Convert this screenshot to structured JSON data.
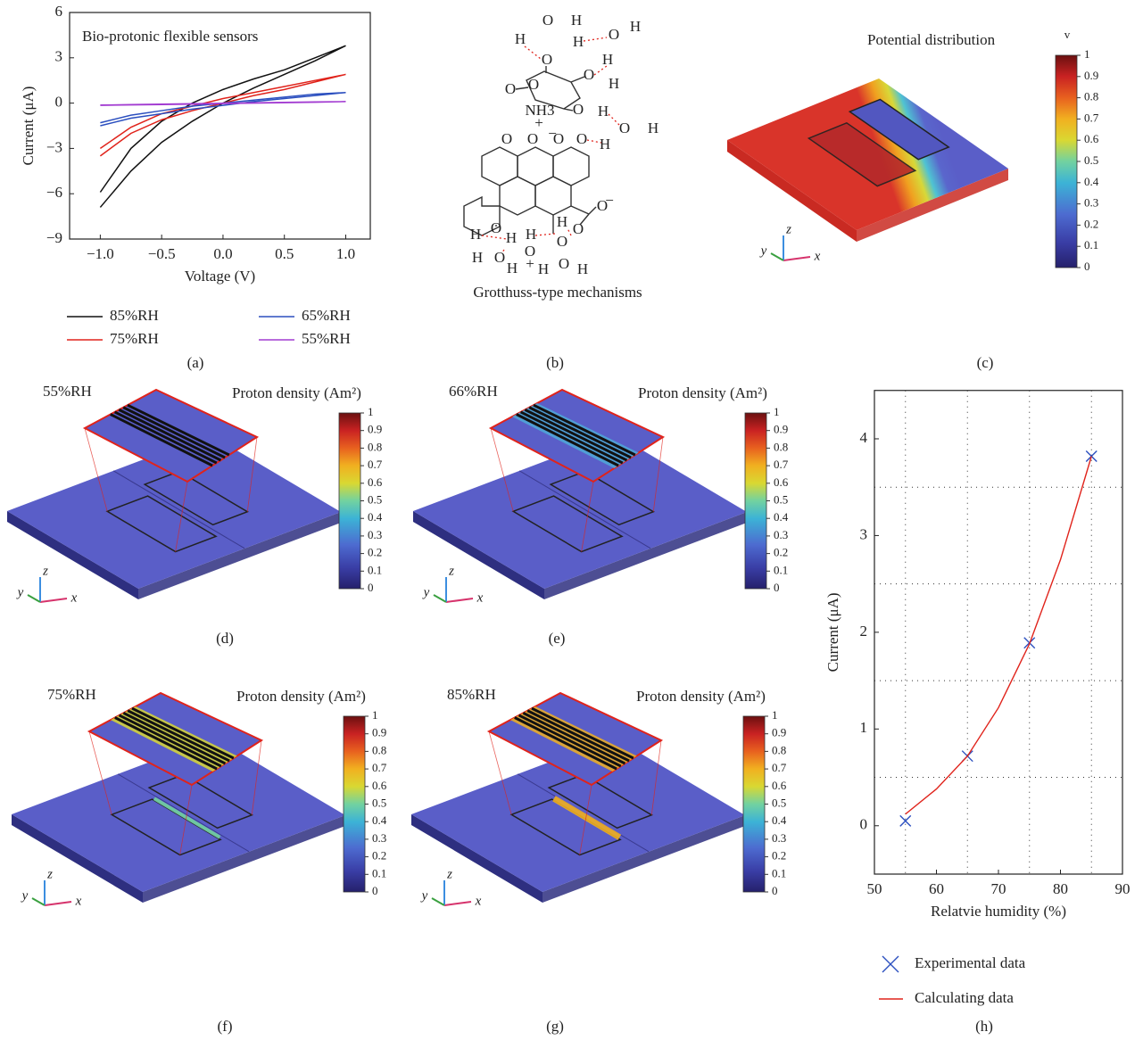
{
  "chart_data": [
    {
      "type": "line",
      "annotation": "Bio-protonic flexible sensors",
      "xlabel": "Voltage (V)",
      "ylabel": "Current (μA)",
      "xlim": [
        -1.25,
        1.2
      ],
      "ylim": [
        -9,
        6
      ],
      "xticks": [
        {
          "value": -1,
          "label": "−1.0"
        },
        {
          "value": -0.5,
          "label": "−0.5"
        },
        {
          "value": 0,
          "label": "0.0"
        },
        {
          "value": 0.5,
          "label": "0.5"
        },
        {
          "value": 1,
          "label": "1.0"
        }
      ],
      "yticks": [
        {
          "value": -9,
          "label": "−9"
        },
        {
          "value": -6,
          "label": "−6"
        },
        {
          "value": -3,
          "label": "−3"
        },
        0,
        3,
        6
      ],
      "x": [
        -1,
        -0.75,
        -0.5,
        -0.25,
        0,
        0.25,
        0.5,
        0.75,
        1,
        0.75,
        0.5,
        0.25,
        0,
        -0.25,
        -0.5,
        -0.75,
        -1
      ],
      "series": [
        {
          "name": "85%RH",
          "color": "#111111",
          "values": [
            -6.9,
            -4.5,
            -2.6,
            -1.2,
            0.0,
            1.0,
            1.9,
            2.8,
            3.8,
            3.0,
            2.2,
            1.6,
            0.9,
            0.0,
            -1.2,
            -3.0,
            -5.9
          ]
        },
        {
          "name": "75%RH",
          "color": "#e0231b",
          "values": [
            -3.5,
            -2.0,
            -1.1,
            -0.5,
            0.0,
            0.5,
            0.9,
            1.4,
            1.9,
            1.5,
            1.1,
            0.7,
            0.3,
            -0.2,
            -0.7,
            -1.6,
            -3.0
          ]
        },
        {
          "name": "65%RH",
          "color": "#2b4fbf",
          "values": [
            -1.5,
            -1.0,
            -0.7,
            -0.4,
            -0.15,
            0.1,
            0.3,
            0.5,
            0.7,
            0.6,
            0.4,
            0.2,
            0.0,
            -0.2,
            -0.5,
            -0.8,
            -1.3
          ]
        },
        {
          "name": "55%RH",
          "color": "#a23bd1",
          "values": [
            -0.15,
            -0.12,
            -0.1,
            -0.07,
            -0.03,
            0.0,
            0.03,
            0.06,
            0.1,
            0.08,
            0.05,
            0.02,
            -0.01,
            -0.04,
            -0.07,
            -0.1,
            -0.13
          ]
        }
      ]
    },
    {
      "type": "scatter",
      "xlabel": "Relatvie humidity (%)",
      "ylabel": "Current (μA)",
      "xlim": [
        50,
        90
      ],
      "ylim": [
        -0.5,
        4.5
      ],
      "xticks": [
        50,
        60,
        70,
        80,
        90
      ],
      "yticks": [
        0,
        1,
        2,
        3,
        4
      ],
      "grid_x": [
        55,
        65,
        75,
        85
      ],
      "grid_y": [
        0.5,
        1.5,
        2.5,
        3.5
      ],
      "series": [
        {
          "name": "Experimental data",
          "color": "#2b4fbf",
          "marker": "x",
          "x": [
            55,
            65,
            75,
            85
          ],
          "values": [
            0.05,
            0.72,
            1.89,
            3.82
          ]
        },
        {
          "name": "Calculating data",
          "color": "#e0231b",
          "marker": "line",
          "x": [
            55,
            60,
            65,
            70,
            75,
            80,
            85
          ],
          "values": [
            0.12,
            0.38,
            0.72,
            1.22,
            1.88,
            2.75,
            3.82
          ]
        }
      ]
    }
  ],
  "panel_labels": [
    "(a)",
    "(b)",
    "(c)",
    "(d)",
    "(e)",
    "(f)",
    "(g)",
    "(h)"
  ],
  "molecule": {
    "caption": "Grotthuss-type mechanisms",
    "atoms": [
      {
        "label": "H",
        "color": "#e0231b"
      },
      {
        "label": "O",
        "color": "#e0231b"
      },
      {
        "label": "H",
        "color": "#e0231b"
      },
      {
        "label": "O",
        "color": "#e0231b"
      },
      {
        "label": "H",
        "color": "#e0231b"
      },
      {
        "label": "H",
        "color": "#e0231b"
      },
      {
        "label": "H",
        "color": "#222222"
      },
      {
        "label": "O",
        "color": "#222222"
      },
      {
        "label": "O",
        "color": "#222222"
      },
      {
        "label": "H",
        "color": "#222222"
      },
      {
        "label": "O",
        "color": "#222222"
      },
      {
        "label": "O",
        "color": "#222222"
      },
      {
        "label": "NH3",
        "color": "#222222"
      },
      {
        "label": "+",
        "color": "#222222"
      },
      {
        "label": "O",
        "color": "#222222"
      },
      {
        "label": "H",
        "color": "#222222"
      },
      {
        "label": "O",
        "color": "#e0231b"
      },
      {
        "label": "H",
        "color": "#e0231b"
      },
      {
        "label": "H",
        "color": "#e0231b"
      },
      {
        "label": "O",
        "color": "#222222"
      },
      {
        "label": "O",
        "color": "#222222"
      },
      {
        "label": "O",
        "color": "#222222"
      },
      {
        "label": "−",
        "color": "#222222"
      },
      {
        "label": "O",
        "color": "#222222"
      },
      {
        "label": "O",
        "color": "#222222"
      },
      {
        "label": "−",
        "color": "#222222"
      },
      {
        "label": "O",
        "color": "#222222"
      },
      {
        "label": "H",
        "color": "#222222"
      },
      {
        "label": "O",
        "color": "#222222"
      },
      {
        "label": "H",
        "color": "#e0231b"
      },
      {
        "label": "H",
        "color": "#e0231b"
      },
      {
        "label": "O",
        "color": "#e0231b"
      },
      {
        "label": "H",
        "color": "#e0231b"
      },
      {
        "label": "H",
        "color": "#e0231b"
      },
      {
        "label": "O",
        "color": "#e0231b"
      },
      {
        "label": "H",
        "color": "#e0231b"
      },
      {
        "label": "O",
        "color": "#e0231b"
      },
      {
        "label": "+",
        "color": "#e0231b"
      },
      {
        "label": "H",
        "color": "#e0231b"
      },
      {
        "label": "O",
        "color": "#e0231b"
      },
      {
        "label": "H",
        "color": "#e0231b"
      }
    ]
  },
  "potential_map": {
    "title": "Potential distribution",
    "axes": [
      "y",
      "z",
      "x"
    ],
    "colorbar": {
      "title": "v",
      "lim": [
        0,
        1
      ],
      "ticks": [
        0,
        0.1,
        0.2,
        0.3,
        0.4,
        0.5,
        0.6,
        0.7,
        0.8,
        0.9,
        1
      ]
    }
  },
  "proton_maps": [
    {
      "humidity": "55%RH",
      "title": "Proton density (Am²)",
      "axes": [
        "y",
        "z",
        "x"
      ],
      "colorbar": {
        "lim": [
          0,
          1
        ],
        "ticks": [
          0,
          0.1,
          0.2,
          0.3,
          0.4,
          0.5,
          0.6,
          0.7,
          0.8,
          0.9,
          1
        ]
      }
    },
    {
      "humidity": "66%RH",
      "title": "Proton density (Am²)",
      "axes": [
        "y",
        "z",
        "x"
      ],
      "colorbar": {
        "lim": [
          0,
          1
        ],
        "ticks": [
          0,
          0.1,
          0.2,
          0.3,
          0.4,
          0.5,
          0.6,
          0.7,
          0.8,
          0.9,
          1
        ]
      }
    },
    {
      "humidity": "75%RH",
      "title": "Proton density (Am²)",
      "axes": [
        "y",
        "z",
        "x"
      ],
      "colorbar": {
        "lim": [
          0,
          1
        ],
        "ticks": [
          0,
          0.1,
          0.2,
          0.3,
          0.4,
          0.5,
          0.6,
          0.7,
          0.8,
          0.9,
          1
        ]
      }
    },
    {
      "humidity": "85%RH",
      "title": "Proton density (Am²)",
      "axes": [
        "y",
        "z",
        "x"
      ],
      "colorbar": {
        "lim": [
          0,
          1
        ],
        "ticks": [
          0,
          0.1,
          0.2,
          0.3,
          0.4,
          0.5,
          0.6,
          0.7,
          0.8,
          0.9,
          1
        ]
      }
    }
  ]
}
